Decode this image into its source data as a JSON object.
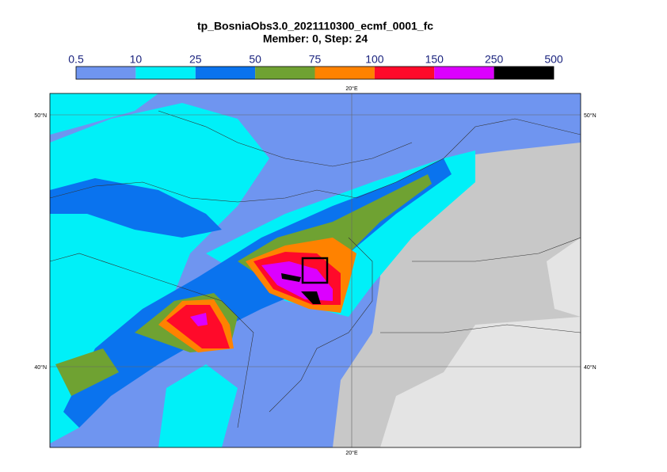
{
  "header": {
    "title": "tp_BosniaObs3.0_2021110300_ecmf_0001_fc",
    "subtitle": "Member: 0, Step: 24"
  },
  "colorbar": {
    "labels": [
      "0.5",
      "10",
      "25",
      "50",
      "75",
      "100",
      "150",
      "250",
      "500"
    ],
    "colors": [
      "#6f95f0",
      "#00f0f8",
      "#0a73ee",
      "#6fa232",
      "#ff8200",
      "#ff0a2a",
      "#dc00ff",
      "#000000"
    ]
  },
  "map": {
    "lon_labels": [
      "20°E",
      "20°E"
    ],
    "lat_labels": [
      "50°N",
      "40°N",
      "50°N",
      "40°N"
    ]
  }
}
